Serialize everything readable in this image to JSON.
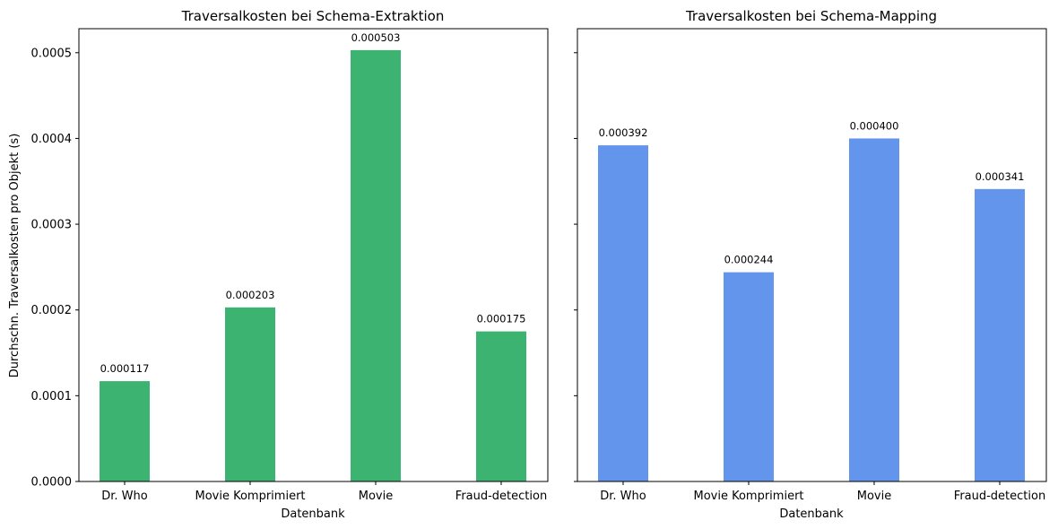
{
  "figure": {
    "ylabel": "Durchschn. Traversalkosten pro Objekt (s)"
  },
  "chart_data": [
    {
      "type": "bar",
      "title": "Traversalkosten bei Schema-Extraktion",
      "xlabel": "Datenbank",
      "ylabel": "Durchschn. Traversalkosten pro Objekt (s)",
      "categories": [
        "Dr. Who",
        "Movie Komprimiert",
        "Movie",
        "Fraud-detection"
      ],
      "values": [
        0.000117,
        0.000203,
        0.000503,
        0.000175
      ],
      "value_labels": [
        "0.000117",
        "0.000203",
        "0.000503",
        "0.000175"
      ],
      "ylim": [
        0,
        0.000528
      ],
      "yticks": [
        0,
        0.0001,
        0.0002,
        0.0003,
        0.0004,
        0.0005
      ],
      "ytick_labels": [
        "0.0000",
        "0.0001",
        "0.0002",
        "0.0003",
        "0.0004",
        "0.0005"
      ],
      "color": "#3cb371",
      "grid": false,
      "legend": false
    },
    {
      "type": "bar",
      "title": "Traversalkosten bei Schema-Mapping",
      "xlabel": "Datenbank",
      "ylabel": "",
      "categories": [
        "Dr. Who",
        "Movie Komprimiert",
        "Movie",
        "Fraud-detection"
      ],
      "values": [
        0.000392,
        0.000244,
        0.0004,
        0.000341
      ],
      "value_labels": [
        "0.000392",
        "0.000244",
        "0.000400",
        "0.000341"
      ],
      "ylim": [
        0,
        0.000528
      ],
      "yticks": [
        0,
        0.0001,
        0.0002,
        0.0003,
        0.0004,
        0.0005
      ],
      "ytick_labels": [],
      "shared_y": true,
      "color": "#6495ed",
      "grid": false,
      "legend": false
    }
  ]
}
